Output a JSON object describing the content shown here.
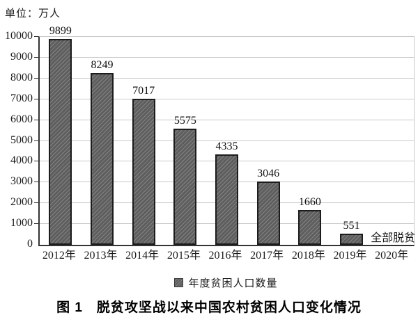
{
  "unit_label": "单位：万人",
  "caption": "图 1　脱贫攻坚战以来中国农村贫困人口变化情况",
  "legend": {
    "swatch_icon": "hatched-square-swatch",
    "label": "年度贫困人口数量"
  },
  "chart_data": {
    "type": "bar",
    "title": "图 1 脱贫攻坚战以来中国农村贫困人口变化情况",
    "unit": "万人",
    "categories": [
      "2012年",
      "2013年",
      "2014年",
      "2015年",
      "2016年",
      "2017年",
      "2018年",
      "2019年",
      "2020年"
    ],
    "values": [
      9899,
      8249,
      7017,
      5575,
      4335,
      3046,
      1660,
      551,
      null
    ],
    "data_labels": [
      "9899",
      "8249",
      "7017",
      "5575",
      "4335",
      "3046",
      "1660",
      "551",
      "全部脱贫"
    ],
    "annotations": [
      {
        "category": "2020年",
        "text": "全部脱贫",
        "position": "baseline"
      }
    ],
    "series_name": "年度贫困人口数量",
    "xlabel": "",
    "ylabel": "",
    "ylim": [
      0,
      10000
    ],
    "ytick_step": 1000,
    "yticks": [
      0,
      1000,
      2000,
      3000,
      4000,
      5000,
      6000,
      7000,
      8000,
      9000,
      10000
    ],
    "grid": true,
    "legend_position": "bottom",
    "bar_style": "diagonal-hatch"
  },
  "colors": {
    "bar_fill": "#5e5e5e",
    "bar_hatch": "#848484",
    "bar_border": "#1c1c1c",
    "gridline": "#c9c9c9",
    "axis": "#333333",
    "text": "#1a1a1a",
    "background": "#ffffff"
  }
}
